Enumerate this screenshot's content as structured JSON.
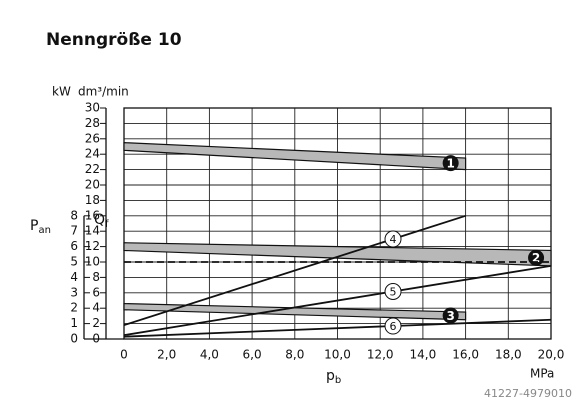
{
  "chart_data": {
    "type": "line",
    "title": "Nenngröße 10",
    "y2_unit": "kW",
    "y_unit": "dm³/min",
    "y2_label": "P",
    "y2_label_sub": "an",
    "y_label": "Q",
    "y_label_sub": "f",
    "x_label": "p",
    "x_label_sub": "b",
    "x_unit": "MPa",
    "xlim": [
      0,
      20
    ],
    "xticks": [
      0,
      {
        "value": 2,
        "label": "2,0"
      },
      {
        "value": 4,
        "label": "4,0"
      },
      {
        "value": 6,
        "label": "6,0"
      },
      {
        "value": 8,
        "label": "8,0"
      },
      {
        "value": 10,
        "label": "10,0"
      },
      {
        "value": 12,
        "label": "12,0"
      },
      {
        "value": 14,
        "label": "14,0"
      },
      {
        "value": 16,
        "label": "16,0"
      },
      {
        "value": 18,
        "label": "18,0"
      },
      {
        "value": 20,
        "label": "20,0"
      }
    ],
    "ylim": [
      0,
      30
    ],
    "yticks": [
      0,
      2,
      4,
      6,
      8,
      10,
      12,
      14,
      16,
      18,
      20,
      22,
      24,
      26,
      28,
      30
    ],
    "y2lim": [
      0,
      15
    ],
    "y2ticks": [
      0,
      1,
      2,
      3,
      4,
      5,
      6,
      7,
      8
    ],
    "grid": true,
    "bands": [
      {
        "name": "1",
        "color": "#b8b8b8",
        "x": [
          0,
          16
        ],
        "upper": [
          25.5,
          23.5
        ],
        "lower": [
          24.5,
          22
        ]
      },
      {
        "name": "2",
        "color": "#b8b8b8",
        "x": [
          0,
          20
        ],
        "upper": [
          12.5,
          11.5
        ],
        "lower": [
          11.5,
          9.5
        ]
      },
      {
        "name": "3",
        "color": "#b8b8b8",
        "x": [
          0,
          16
        ],
        "upper": [
          4.6,
          3.5
        ],
        "lower": [
          3.8,
          2.5
        ]
      }
    ],
    "series": [
      {
        "name": "4",
        "color": "#111111",
        "x": [
          0,
          16
        ],
        "values": [
          1.8,
          16
        ]
      },
      {
        "name": "5",
        "color": "#111111",
        "x": [
          0,
          20
        ],
        "values": [
          0.5,
          9.5
        ]
      },
      {
        "name": "6",
        "color": "#111111",
        "x": [
          0,
          20
        ],
        "values": [
          0.3,
          2.5
        ]
      },
      {
        "color": "#111111",
        "dashed": true,
        "x": [
          0,
          20
        ],
        "values": [
          10,
          10
        ]
      }
    ],
    "watermark": "41227-4979010"
  }
}
